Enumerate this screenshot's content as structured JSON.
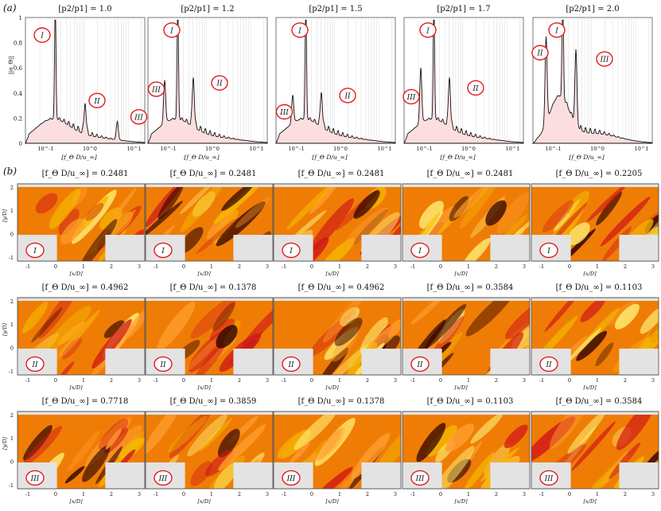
{
  "figure": {
    "part_a_label": "(a)",
    "part_b_label": "(b)"
  },
  "spectra": {
    "ylabel": "||α_Θ||",
    "xlabel": "[f_Θ D/u_∞]",
    "yticks": [
      "0",
      "0.2",
      "0.4",
      "0.6",
      "0.8",
      "1"
    ],
    "xticks": [
      "10^-1",
      "10^0",
      "10^1"
    ],
    "panels": [
      {
        "title": "[p2/p1] = 1.0",
        "peaks": [
          {
            "x": 0.25,
            "y": 1.0
          },
          {
            "x": 0.5,
            "y": 0.25
          },
          {
            "x": 0.77,
            "y": 0.15
          }
        ],
        "markers": [
          {
            "label": "I",
            "x": 0.14,
            "y": 0.86
          },
          {
            "label": "II",
            "x": 0.6,
            "y": 0.34
          },
          {
            "label": "III",
            "x": 0.95,
            "y": 0.21
          }
        ]
      },
      {
        "title": "[p2/p1] = 1.2",
        "peaks": [
          {
            "x": 0.25,
            "y": 1.0
          },
          {
            "x": 0.14,
            "y": 0.35
          },
          {
            "x": 0.38,
            "y": 0.4
          }
        ],
        "markers": [
          {
            "label": "I",
            "x": 0.2,
            "y": 0.9
          },
          {
            "label": "III",
            "x": 0.07,
            "y": 0.43
          },
          {
            "label": "II",
            "x": 0.6,
            "y": 0.48
          }
        ]
      },
      {
        "title": "[p2/p1] = 1.5",
        "peaks": [
          {
            "x": 0.25,
            "y": 1.0
          },
          {
            "x": 0.14,
            "y": 0.23
          },
          {
            "x": 0.38,
            "y": 0.28
          }
        ],
        "markers": [
          {
            "label": "I",
            "x": 0.2,
            "y": 0.9
          },
          {
            "label": "III",
            "x": 0.07,
            "y": 0.25
          },
          {
            "label": "II",
            "x": 0.6,
            "y": 0.38
          }
        ]
      },
      {
        "title": "[p2/p1] = 1.7",
        "peaks": [
          {
            "x": 0.25,
            "y": 1.0
          },
          {
            "x": 0.14,
            "y": 0.45
          },
          {
            "x": 0.38,
            "y": 0.4
          }
        ],
        "markers": [
          {
            "label": "I",
            "x": 0.2,
            "y": 0.9
          },
          {
            "label": "III",
            "x": 0.06,
            "y": 0.37
          },
          {
            "label": "II",
            "x": 0.6,
            "y": 0.44
          }
        ]
      },
      {
        "title": "[p2/p1] = 2.0",
        "peaks": [
          {
            "x": 0.25,
            "y": 1.0
          },
          {
            "x": 0.11,
            "y": 0.7
          },
          {
            "x": 0.36,
            "y": 0.58
          }
        ],
        "markers": [
          {
            "label": "I",
            "x": 0.2,
            "y": 0.9
          },
          {
            "label": "II",
            "x": 0.06,
            "y": 0.72
          },
          {
            "label": "III",
            "x": 0.6,
            "y": 0.67
          }
        ]
      }
    ]
  },
  "modes": {
    "xlabel": "[x/D]",
    "ylabel": "[y/D]",
    "xticks": [
      "-1",
      "0",
      "1",
      "2",
      "3"
    ],
    "yticks": [
      "-1",
      "0",
      "1",
      "2"
    ],
    "title_prefix": "[f_Θ D/u_∞] = ",
    "rows": [
      {
        "label": "I",
        "values": [
          "0.2481",
          "0.2481",
          "0.2481",
          "0.2481",
          "0.2205"
        ]
      },
      {
        "label": "II",
        "values": [
          "0.4962",
          "0.1378",
          "0.4962",
          "0.3584",
          "0.1103"
        ]
      },
      {
        "label": "III",
        "values": [
          "0.7718",
          "0.3859",
          "0.1378",
          "0.1103",
          "0.3584"
        ]
      }
    ]
  },
  "colors": {
    "spectrum_fill": "#fcdede",
    "spectrum_line": "#111111",
    "marker_circle": "#e41a1c",
    "wall_gray": "#e3e3e3",
    "field_base": "#ef7d05",
    "field_dark": "#2a0000",
    "field_red": "#d01818",
    "field_yellow": "#fff176"
  }
}
